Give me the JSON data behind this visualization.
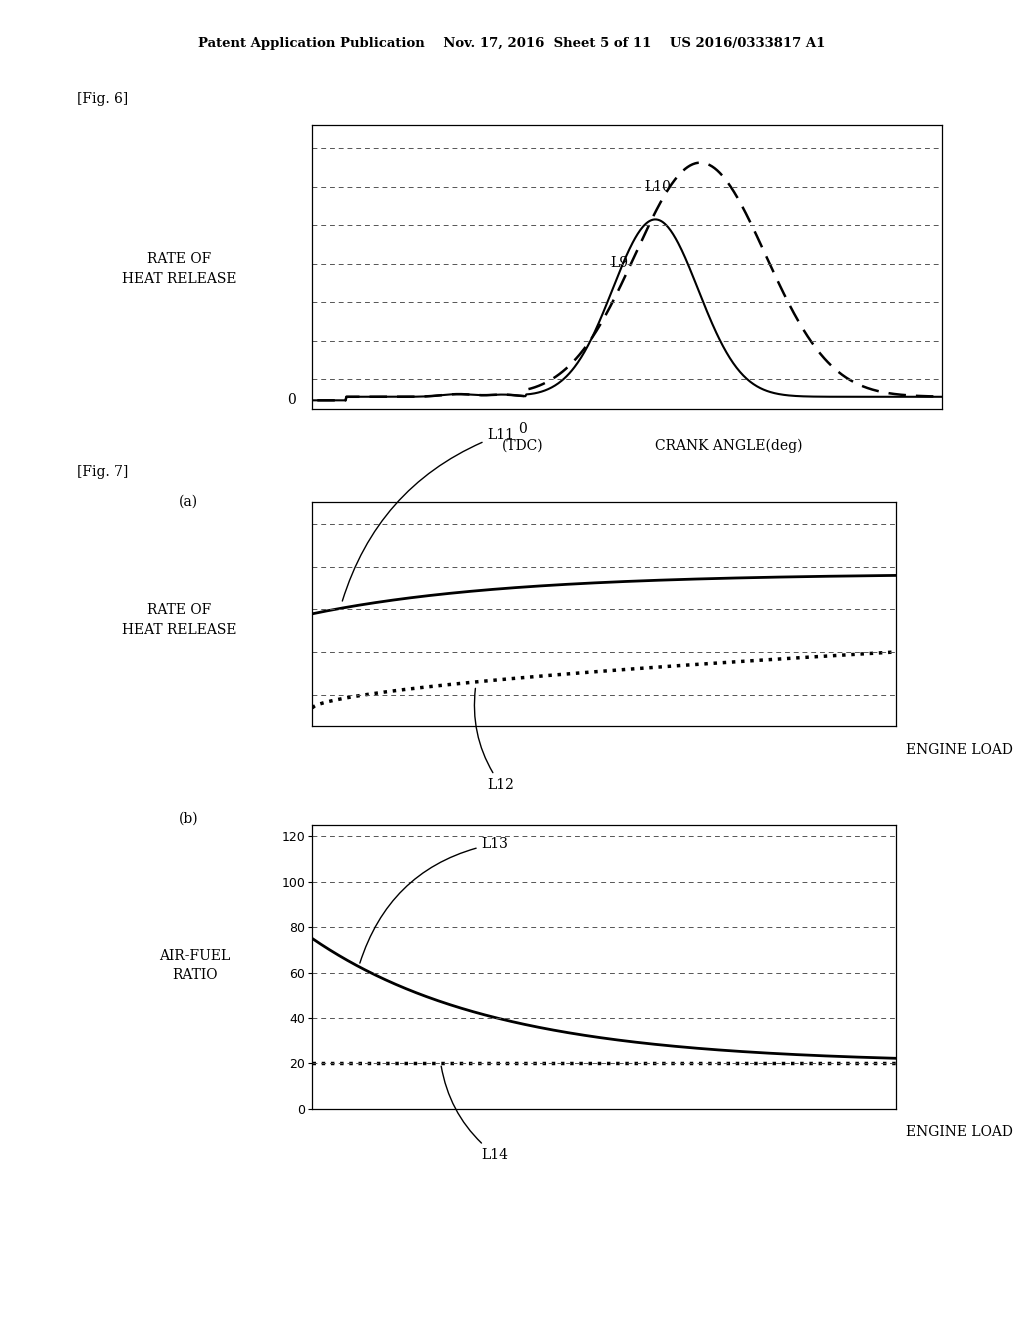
{
  "header_text": "Patent Application Publication    Nov. 17, 2016  Sheet 5 of 11    US 2016/0333817 A1",
  "fig6_label": "[Fig. 6]",
  "fig7_label": "[Fig. 7]",
  "fig6_ylabel1": "RATE OF",
  "fig6_ylabel2": "HEAT RELEASE",
  "fig6_xlabel_0": "0",
  "fig6_xlabel_tdc": "(TDC)",
  "fig6_xlabel_ca": "CRANK ANGLE(deg)",
  "fig7a_label": "(a)",
  "fig7a_ylabel1": "RATE OF",
  "fig7a_ylabel2": "HEAT RELEASE",
  "fig7a_xlabel": "ENGINE LOAD",
  "fig7b_label": "(b)",
  "fig7b_ylabel1": "AIR-FUEL",
  "fig7b_ylabel2": "RATIO",
  "fig7b_xlabel": "ENGINE LOAD",
  "fig7b_yticks": [
    0,
    20,
    40,
    60,
    80,
    100,
    120
  ],
  "L9_label": "L9",
  "L10_label": "L10",
  "L11_label": "L11",
  "L12_label": "L12",
  "L13_label": "L13",
  "L14_label": "L14",
  "bg_color": "#ffffff"
}
